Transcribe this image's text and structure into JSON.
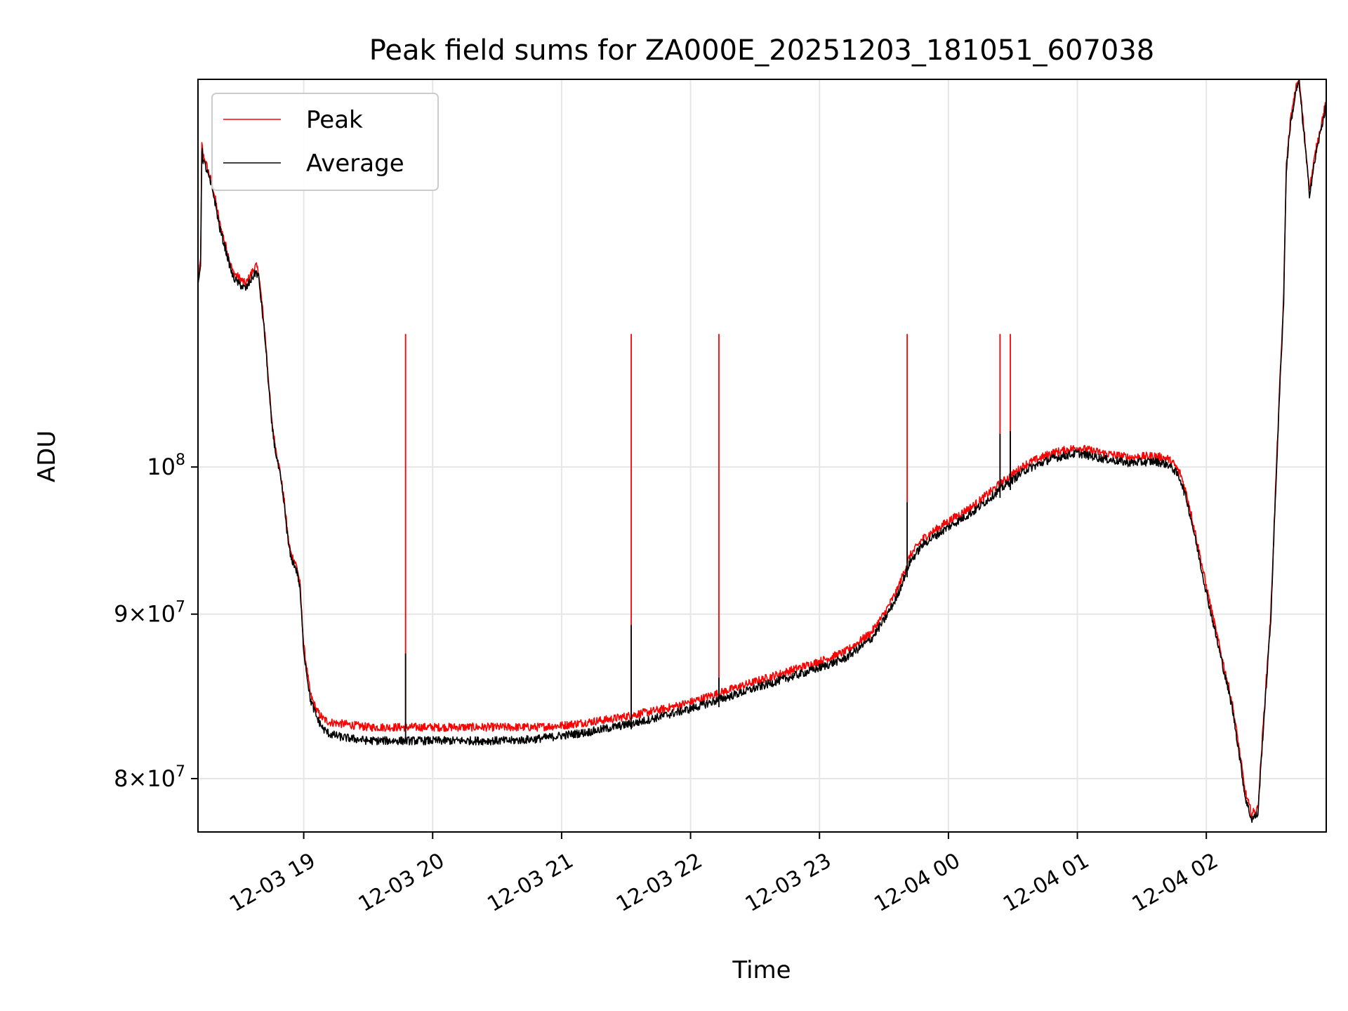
{
  "chart_data": {
    "type": "line",
    "title": "Peak field sums for ZA000E_20251203_181051_607038",
    "xlabel": "Time",
    "ylabel": "ADU",
    "yscale": "log",
    "grid": true,
    "legend_position": "upper-left",
    "xlim_hours": [
      18.18,
      26.93
    ],
    "ylim": [
      77000000,
      132000000
    ],
    "x_ticks": [
      {
        "hour": 19,
        "label": "12-03 19"
      },
      {
        "hour": 20,
        "label": "12-03 20"
      },
      {
        "hour": 21,
        "label": "12-03 21"
      },
      {
        "hour": 22,
        "label": "12-03 22"
      },
      {
        "hour": 23,
        "label": "12-03 23"
      },
      {
        "hour": 24,
        "label": "12-04 00"
      },
      {
        "hour": 25,
        "label": "12-04 01"
      },
      {
        "hour": 26,
        "label": "12-04 02"
      }
    ],
    "y_ticks": [
      {
        "value": 80000000,
        "base": "8×10",
        "exp": "7"
      },
      {
        "value": 90000000,
        "base": "9×10",
        "exp": "7"
      },
      {
        "value": 100000000,
        "base": "10",
        "exp": "8"
      }
    ],
    "x_unit": "hours since 2025-12-03 00:00",
    "series": [
      {
        "name": "Peak",
        "color": "#ff0000",
        "x": [
          18.18,
          18.2,
          18.21,
          18.22,
          18.25,
          18.3,
          18.35,
          18.4,
          18.45,
          18.5,
          18.55,
          18.6,
          18.63,
          18.65,
          18.7,
          18.75,
          18.78,
          18.8,
          18.82,
          18.85,
          18.88,
          18.9,
          18.93,
          18.95,
          18.97,
          19.0,
          19.05,
          19.1,
          19.15,
          19.2,
          19.3,
          19.4,
          19.5,
          19.6,
          19.7,
          19.8,
          19.9,
          20.0,
          20.2,
          20.4,
          20.6,
          20.8,
          21.0,
          21.2,
          21.4,
          21.6,
          21.8,
          22.0,
          22.2,
          22.4,
          22.6,
          22.8,
          23.0,
          23.2,
          23.4,
          23.5,
          23.6,
          23.7,
          23.8,
          23.9,
          24.0,
          24.2,
          24.4,
          24.6,
          24.8,
          25.0,
          25.2,
          25.4,
          25.6,
          25.7,
          25.75,
          25.8,
          25.85,
          25.9,
          26.0,
          26.1,
          26.2,
          26.25,
          26.3,
          26.35,
          26.4,
          26.5,
          26.6,
          26.62,
          26.65,
          26.7,
          26.72,
          26.8,
          26.85,
          26.93
        ],
        "y": [
          114000000,
          116000000,
          126000000,
          125000000,
          124000000,
          122000000,
          119000000,
          117000000,
          115000000,
          114500000,
          114000000,
          115000000,
          115500000,
          115000000,
          110000000,
          103500000,
          101500000,
          100500000,
          99500000,
          97500000,
          95000000,
          94000000,
          93500000,
          93000000,
          92000000,
          88000000,
          85000000,
          84000000,
          83500000,
          83300000,
          83200000,
          83100000,
          83000000,
          83000000,
          83000000,
          83000000,
          83000000,
          83000000,
          83000000,
          83000000,
          83000000,
          83000000,
          83100000,
          83300000,
          83500000,
          83800000,
          84100000,
          84500000,
          85000000,
          85500000,
          86000000,
          86500000,
          87000000,
          87600000,
          88800000,
          90000000,
          91500000,
          93800000,
          95000000,
          95600000,
          96200000,
          97300000,
          98800000,
          100200000,
          101000000,
          101400000,
          101000000,
          100700000,
          100800000,
          100600000,
          100200000,
          99500000,
          98000000,
          96000000,
          91800000,
          88000000,
          84500000,
          82000000,
          79300000,
          78000000,
          78300000,
          90000000,
          113000000,
          124000000,
          128000000,
          131500000,
          132000000,
          122000000,
          125500000,
          130000000
        ]
      },
      {
        "name": "Average",
        "color": "#000000",
        "x": [
          18.18,
          18.2,
          18.21,
          18.22,
          18.25,
          18.3,
          18.35,
          18.4,
          18.45,
          18.5,
          18.55,
          18.6,
          18.63,
          18.65,
          18.7,
          18.75,
          18.78,
          18.8,
          18.82,
          18.85,
          18.88,
          18.9,
          18.93,
          18.95,
          18.97,
          19.0,
          19.05,
          19.1,
          19.15,
          19.2,
          19.3,
          19.4,
          19.5,
          19.6,
          19.7,
          19.8,
          19.9,
          20.0,
          20.2,
          20.4,
          20.6,
          20.8,
          21.0,
          21.2,
          21.4,
          21.6,
          21.8,
          22.0,
          22.2,
          22.4,
          22.6,
          22.8,
          23.0,
          23.2,
          23.4,
          23.5,
          23.6,
          23.7,
          23.8,
          23.9,
          24.0,
          24.2,
          24.4,
          24.6,
          24.8,
          25.0,
          25.2,
          25.4,
          25.6,
          25.7,
          25.75,
          25.8,
          25.85,
          25.9,
          26.0,
          26.1,
          26.2,
          26.25,
          26.3,
          26.35,
          26.4,
          26.5,
          26.6,
          26.62,
          26.65,
          26.7,
          26.72,
          26.8,
          26.85,
          26.93
        ],
        "y": [
          113600000,
          115600000,
          125600000,
          124600000,
          123600000,
          121600000,
          118600000,
          116600000,
          114600000,
          114000000,
          113600000,
          114500000,
          115000000,
          114600000,
          109600000,
          103200000,
          101200000,
          100200000,
          99200000,
          97200000,
          94700000,
          93700000,
          93200000,
          92700000,
          91700000,
          87700000,
          84700000,
          83600000,
          82900000,
          82600000,
          82400000,
          82300000,
          82200000,
          82200000,
          82200000,
          82200000,
          82200000,
          82200000,
          82200000,
          82200000,
          82200000,
          82300000,
          82500000,
          82700000,
          83000000,
          83300000,
          83700000,
          84100000,
          84600000,
          85100000,
          85600000,
          86100000,
          86600000,
          87200000,
          88400000,
          89600000,
          91100000,
          93400000,
          94600000,
          95200000,
          95800000,
          96900000,
          98400000,
          99800000,
          100600000,
          101000000,
          100600000,
          100300000,
          100400000,
          100200000,
          99800000,
          99100000,
          97600000,
          95600000,
          91400000,
          87700000,
          84200000,
          81700000,
          79000000,
          77700000,
          78000000,
          89600000,
          112600000,
          123600000,
          127600000,
          131100000,
          131600000,
          121600000,
          125100000,
          129600000
        ]
      }
    ],
    "peak_spikes": [
      {
        "hour": 19.79,
        "peak": 110000000,
        "average": 87500000
      },
      {
        "hour": 21.54,
        "peak": 110000000,
        "average": 89300000
      },
      {
        "hour": 22.22,
        "peak": 110000000,
        "average": 86000000
      },
      {
        "hour": 23.68,
        "peak": 110000000,
        "average": 97500000
      },
      {
        "hour": 24.4,
        "peak": 110000000,
        "average": 102400000
      },
      {
        "hour": 24.48,
        "peak": 110000000,
        "average": 102600000
      }
    ]
  }
}
